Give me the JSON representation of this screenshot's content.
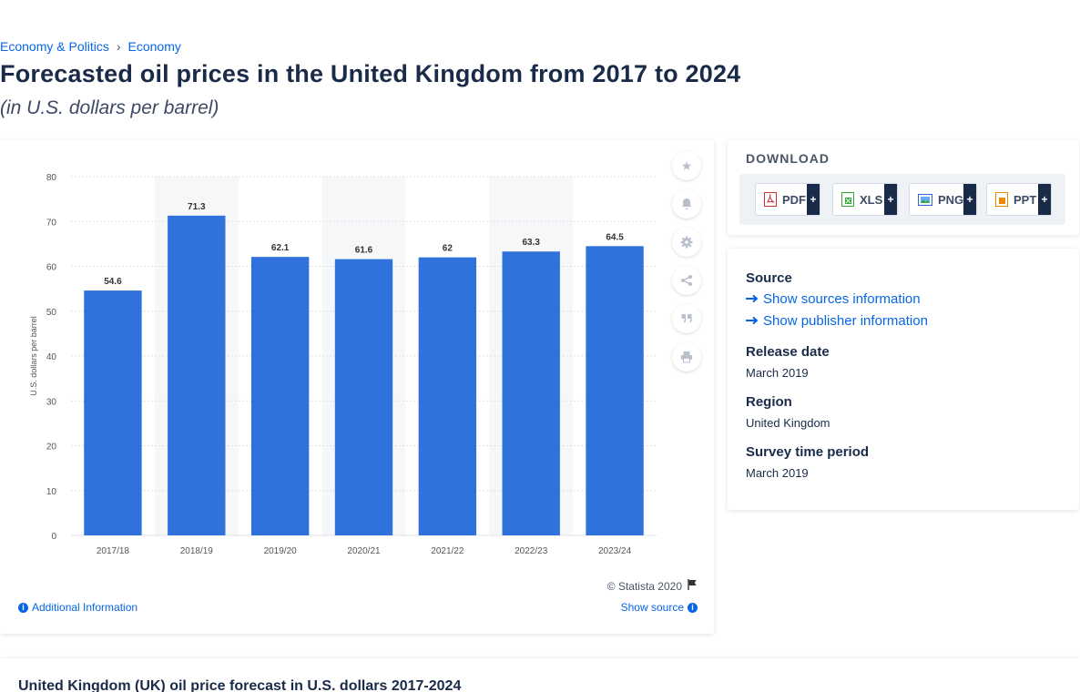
{
  "breadcrumb": {
    "items": [
      "Economy & Politics",
      "Economy"
    ]
  },
  "title": "Forecasted oil prices in the United Kingdom from 2017 to 2024",
  "subtitle": "(in U.S. dollars per barrel)",
  "chart_data": {
    "type": "bar",
    "categories": [
      "2017/18",
      "2018/19",
      "2019/20",
      "2020/21",
      "2021/22",
      "2022/23",
      "2023/24"
    ],
    "values": [
      54.6,
      71.3,
      62.1,
      61.6,
      62,
      63.3,
      64.5
    ],
    "value_labels": [
      "54.6",
      "71.3",
      "62.1",
      "61.6",
      "62",
      "63.3",
      "64.5"
    ],
    "title": "",
    "xlabel": "",
    "ylabel": "U.S. dollars per barrel",
    "ylim": [
      0,
      80
    ],
    "yticks": [
      0,
      10,
      20,
      30,
      40,
      50,
      60,
      70,
      80
    ],
    "grid": true,
    "bar_color": "#3072dc"
  },
  "chart_footer": {
    "copyright": "© Statista 2020",
    "additional_info": "Additional Information",
    "show_source": "Show source"
  },
  "toolbar": {
    "icons": [
      "star-icon",
      "bell-icon",
      "gear-icon",
      "share-icon",
      "quote-icon",
      "print-icon"
    ]
  },
  "download": {
    "title": "DOWNLOAD",
    "buttons": [
      {
        "label": "PDF",
        "plus": "+"
      },
      {
        "label": "XLS",
        "plus": "+"
      },
      {
        "label": "PNG",
        "plus": "+"
      },
      {
        "label": "PPT",
        "plus": "+"
      }
    ]
  },
  "info": {
    "source_head": "Source",
    "show_sources": "Show sources information",
    "show_publisher": "Show publisher information",
    "release_head": "Release date",
    "release_val": "March 2019",
    "region_head": "Region",
    "region_val": "United Kingdom",
    "survey_head": "Survey time period",
    "survey_val": "March 2019"
  },
  "bottom": {
    "title": "United Kingdom (UK) oil price forecast in U.S. dollars 2017-2024"
  },
  "colors": {
    "accent": "#0666e5",
    "bar": "#3072dc",
    "text": "#1a2b49"
  }
}
